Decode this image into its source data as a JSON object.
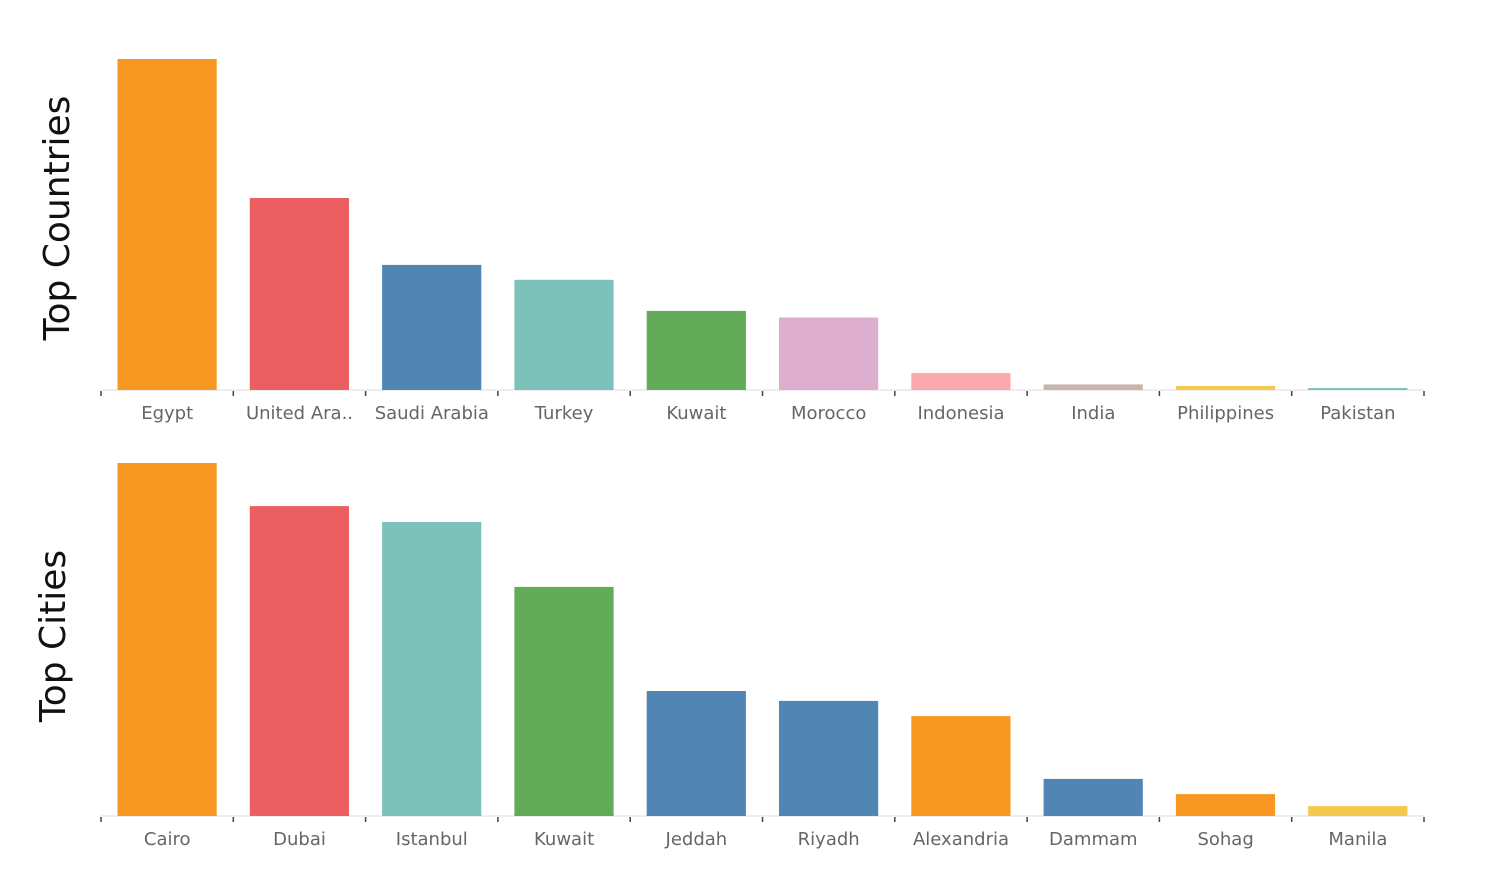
{
  "chart_data": [
    {
      "type": "bar",
      "title": "Top Countries",
      "categories": [
        "Egypt",
        "United Ara..",
        "Saudi Arabia",
        "Turkey",
        "Kuwait",
        "Morocco",
        "Indonesia",
        "India",
        "Philippines",
        "Pakistan"
      ],
      "values": [
        100,
        58,
        37.8,
        33.3,
        23.9,
        21.9,
        5.1,
        1.7,
        1.2,
        0.6
      ],
      "colors": [
        "#f89822",
        "#eb5f62",
        "#5185b4",
        "#7dc1bb",
        "#62ac59",
        "#ddaecd",
        "#fea8ae",
        "#c6b6ab",
        "#f2c94c",
        "#7dc1bb"
      ],
      "ylim": [
        0,
        100
      ],
      "xlabel": "",
      "ylabel": "",
      "grid": false,
      "legend": "none"
    },
    {
      "type": "bar",
      "title": "Top Cities",
      "categories": [
        "Cairo",
        "Dubai",
        "Istanbul",
        "Kuwait",
        "Jeddah",
        "Riyadh",
        "Alexandria",
        "Dammam",
        "Sohag",
        "Manila"
      ],
      "values": [
        100,
        87.8,
        83.3,
        64.9,
        35.4,
        32.6,
        28.3,
        10.5,
        6.2,
        2.8
      ],
      "colors": [
        "#f89822",
        "#eb5f62",
        "#7dc1bb",
        "#62ac59",
        "#5185b4",
        "#5185b4",
        "#f89822",
        "#5185b4",
        "#f89822",
        "#f2c94c"
      ],
      "ylim": [
        0,
        100
      ],
      "xlabel": "",
      "ylabel": "",
      "grid": false,
      "legend": "none"
    }
  ]
}
